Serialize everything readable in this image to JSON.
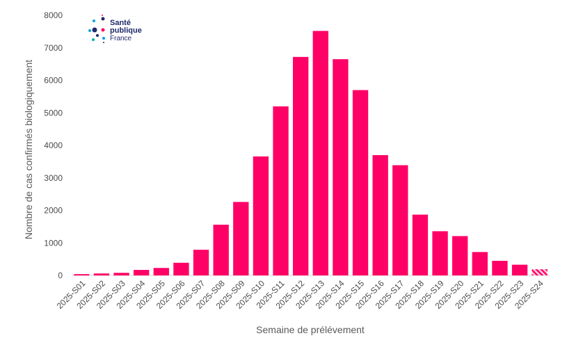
{
  "logo": {
    "line1": "Santé",
    "line2": "publique",
    "line3": "France"
  },
  "colors": {
    "bar": "#ff0066",
    "provisional_hatch": "#ff0066",
    "axis": "#d9d9d9",
    "text": "#4a4a4a"
  },
  "chart_data": {
    "type": "bar",
    "title": "",
    "xlabel": "Semaine de prélévement",
    "ylabel": "Nombre de cas confirmés biologiquement",
    "ylim": [
      0,
      8000
    ],
    "yticks": [
      0,
      1000,
      2000,
      3000,
      4000,
      5000,
      6000,
      7000,
      8000
    ],
    "grid": false,
    "categories": [
      "2025-S01",
      "2025-S02",
      "2025-S03",
      "2025-S04",
      "2025-S05",
      "2025-S06",
      "2025-S07",
      "2025-S08",
      "2025-S09",
      "2025-S10",
      "2025-S11",
      "2025-S12",
      "2025-S13",
      "2025-S14",
      "2025-S15",
      "2025-S16",
      "2025-S17",
      "2025-S18",
      "2025-S19",
      "2025-S20",
      "2025-S21",
      "2025-S22",
      "2025-S23",
      "2025-S24"
    ],
    "values": [
      40,
      60,
      80,
      170,
      230,
      390,
      790,
      1560,
      2260,
      3660,
      5200,
      6720,
      7520,
      6650,
      5700,
      3700,
      3390,
      1870,
      1360,
      1210,
      720,
      450,
      330,
      190
    ],
    "provisional_last": true
  }
}
